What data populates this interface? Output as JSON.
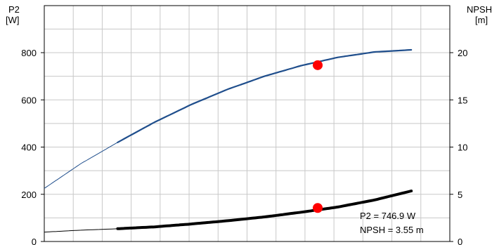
{
  "chart_data": {
    "type": "line",
    "left_axis": {
      "label_line1": "P2",
      "label_line2": "[W]",
      "ylim": [
        0,
        800
      ],
      "ticks": [
        0,
        200,
        400,
        600,
        800
      ]
    },
    "right_axis": {
      "label_line1": "NPSH",
      "label_line2": "[m]",
      "ylim": [
        0,
        20
      ],
      "ticks": [
        0,
        5,
        10,
        15,
        20
      ]
    },
    "x_ticks_labeled": false,
    "grid": true,
    "series": [
      {
        "axis": "left",
        "color": "#1f4e8c",
        "x": [
          0,
          0.1,
          0.2,
          0.3,
          0.4,
          0.5,
          0.6,
          0.7,
          0.8,
          0.9,
          1.0
        ],
        "values": [
          225,
          330,
          420,
          505,
          580,
          645,
          700,
          745,
          780,
          803,
          812
        ],
        "thick_from_x": 0.2
      },
      {
        "axis": "right",
        "color": "#000000",
        "x": [
          0,
          0.1,
          0.2,
          0.3,
          0.4,
          0.5,
          0.6,
          0.7,
          0.8,
          0.9,
          1.0
        ],
        "values": [
          1.0,
          1.2,
          1.35,
          1.55,
          1.85,
          2.2,
          2.6,
          3.1,
          3.65,
          4.4,
          5.35
        ],
        "thick_from_x": 0.2
      }
    ],
    "operating_point": {
      "x": 0.745,
      "p2": 746.9,
      "npsh": 3.55,
      "color": "#ff0000"
    },
    "readout": {
      "p2_text": "P2 = 746.9 W",
      "npsh_text": "NPSH = 3.55 m"
    }
  }
}
